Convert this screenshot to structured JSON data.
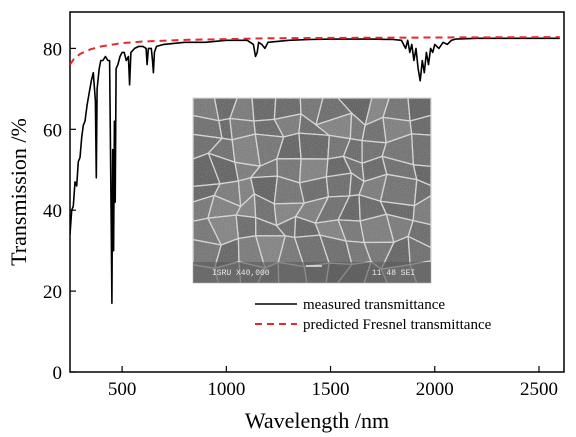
{
  "chart_data": {
    "type": "line",
    "title": "",
    "xlabel": "Wavelength /nm",
    "ylabel": "Transmission /%",
    "xlim": [
      250,
      2620
    ],
    "ylim": [
      0,
      89
    ],
    "x_ticks": [
      500,
      1000,
      1500,
      2000,
      2500
    ],
    "y_ticks": [
      0,
      20,
      40,
      60,
      80
    ],
    "grid": false,
    "legend_position": "bottom-right",
    "series": [
      {
        "name": "measured transmittance",
        "color": "#000000",
        "style": "solid",
        "points": [
          [
            250,
            34
          ],
          [
            258,
            40
          ],
          [
            266,
            41
          ],
          [
            274,
            47
          ],
          [
            282,
            46
          ],
          [
            290,
            52
          ],
          [
            298,
            53
          ],
          [
            306,
            58
          ],
          [
            314,
            61
          ],
          [
            322,
            62
          ],
          [
            332,
            66
          ],
          [
            342,
            69
          ],
          [
            352,
            72
          ],
          [
            362,
            74
          ],
          [
            372,
            67
          ],
          [
            376,
            48
          ],
          [
            380,
            70
          ],
          [
            390,
            75
          ],
          [
            398,
            77
          ],
          [
            408,
            77
          ],
          [
            420,
            78
          ],
          [
            432,
            77
          ],
          [
            440,
            77
          ],
          [
            447,
            40
          ],
          [
            451,
            17
          ],
          [
            455,
            55
          ],
          [
            459,
            30
          ],
          [
            463,
            62
          ],
          [
            467,
            42
          ],
          [
            471,
            75
          ],
          [
            480,
            76
          ],
          [
            490,
            78
          ],
          [
            500,
            79
          ],
          [
            510,
            79
          ],
          [
            520,
            77
          ],
          [
            530,
            78
          ],
          [
            536,
            71
          ],
          [
            542,
            79
          ],
          [
            560,
            80
          ],
          [
            580,
            80.5
          ],
          [
            600,
            80.5
          ],
          [
            615,
            80
          ],
          [
            620,
            76
          ],
          [
            626,
            80
          ],
          [
            640,
            80
          ],
          [
            646,
            77
          ],
          [
            650,
            74
          ],
          [
            655,
            79
          ],
          [
            665,
            80.5
          ],
          [
            700,
            81
          ],
          [
            800,
            81.5
          ],
          [
            900,
            81.5
          ],
          [
            1000,
            82
          ],
          [
            1100,
            82
          ],
          [
            1130,
            81
          ],
          [
            1140,
            78
          ],
          [
            1148,
            79
          ],
          [
            1155,
            81.5
          ],
          [
            1170,
            81
          ],
          [
            1185,
            80
          ],
          [
            1200,
            81.5
          ],
          [
            1300,
            82
          ],
          [
            1400,
            82.2
          ],
          [
            1500,
            82.3
          ],
          [
            1600,
            82.3
          ],
          [
            1700,
            82.3
          ],
          [
            1800,
            82.2
          ],
          [
            1840,
            82
          ],
          [
            1860,
            80
          ],
          [
            1870,
            82
          ],
          [
            1880,
            79
          ],
          [
            1890,
            81
          ],
          [
            1900,
            77
          ],
          [
            1910,
            80
          ],
          [
            1920,
            75
          ],
          [
            1930,
            72
          ],
          [
            1940,
            77
          ],
          [
            1950,
            74
          ],
          [
            1960,
            79
          ],
          [
            1970,
            76
          ],
          [
            1980,
            80
          ],
          [
            1990,
            79
          ],
          [
            2000,
            81
          ],
          [
            2020,
            80
          ],
          [
            2040,
            81.5
          ],
          [
            2060,
            81
          ],
          [
            2080,
            82
          ],
          [
            2100,
            82.3
          ],
          [
            2200,
            82.5
          ],
          [
            2300,
            82.5
          ],
          [
            2400,
            82.5
          ],
          [
            2500,
            82.5
          ],
          [
            2600,
            82.5
          ]
        ]
      },
      {
        "name": "predicted Fresnel transmittance",
        "color": "#e8282d",
        "style": "dashed",
        "points": [
          [
            250,
            76
          ],
          [
            270,
            77.5
          ],
          [
            300,
            78.7
          ],
          [
            350,
            79.8
          ],
          [
            400,
            80.5
          ],
          [
            500,
            81.3
          ],
          [
            600,
            81.7
          ],
          [
            800,
            82.1
          ],
          [
            1000,
            82.3
          ],
          [
            1200,
            82.5
          ],
          [
            1500,
            82.6
          ],
          [
            2000,
            82.7
          ],
          [
            2600,
            82.8
          ]
        ]
      }
    ],
    "inset": {
      "type": "SEM micrograph",
      "caption_left": "ISRU  X40,000",
      "caption_right": "11 48 SEI"
    }
  }
}
